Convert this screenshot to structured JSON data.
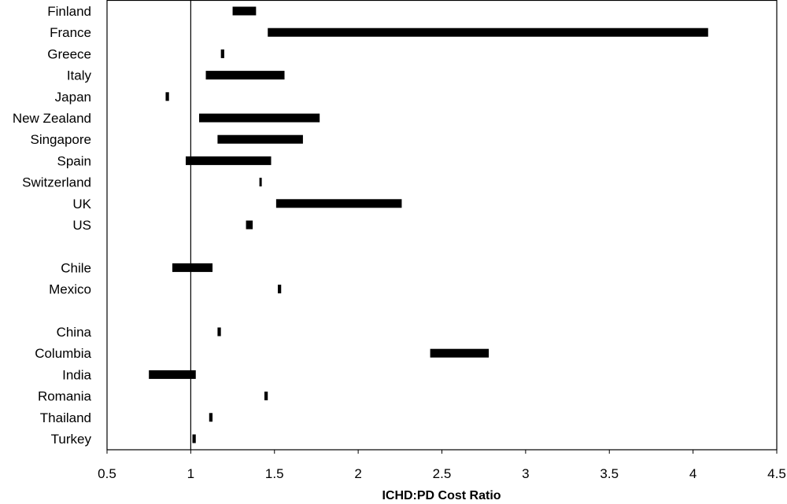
{
  "chart_data": {
    "type": "bar",
    "subtype": "floating-range",
    "xlabel": "ICHD:PD Cost Ratio",
    "ylabel": "",
    "xlim": [
      0.5,
      4.5
    ],
    "xticks": [
      "0.5",
      "1",
      "1.5",
      "2",
      "2.5",
      "3",
      "3.5",
      "4",
      "4.5"
    ],
    "reference_line_x": 1,
    "grid": false,
    "series": [
      {
        "values": [
          {
            "category": "Finland",
            "low": 1.25,
            "high": 1.39
          },
          {
            "category": "France",
            "low": 1.46,
            "high": 4.09
          },
          {
            "category": "Greece",
            "low": 1.18,
            "high": 1.2
          },
          {
            "category": "Italy",
            "low": 1.09,
            "high": 1.56
          },
          {
            "category": "Japan",
            "low": 0.85,
            "high": 0.87
          },
          {
            "category": "New Zealand",
            "low": 1.05,
            "high": 1.77
          },
          {
            "category": "Singapore",
            "low": 1.16,
            "high": 1.67
          },
          {
            "category": "Spain",
            "low": 0.97,
            "high": 1.48
          },
          {
            "category": "Switzerland",
            "low": 1.41,
            "high": 1.42
          },
          {
            "category": "UK",
            "low": 1.51,
            "high": 2.26
          },
          {
            "category": "US",
            "low": 1.33,
            "high": 1.37
          },
          {
            "category": "",
            "low": null,
            "high": null
          },
          {
            "category": "Chile",
            "low": 0.89,
            "high": 1.13
          },
          {
            "category": "Mexico",
            "low": 1.52,
            "high": 1.54
          },
          {
            "category": "",
            "low": null,
            "high": null
          },
          {
            "category": "China",
            "low": 1.16,
            "high": 1.18
          },
          {
            "category": "Columbia",
            "low": 2.43,
            "high": 2.78
          },
          {
            "category": "India",
            "low": 0.75,
            "high": 1.03
          },
          {
            "category": "Romania",
            "low": 1.44,
            "high": 1.46
          },
          {
            "category": "Thailand",
            "low": 1.11,
            "high": 1.13
          },
          {
            "category": "Turkey",
            "low": 1.01,
            "high": 1.03
          }
        ]
      }
    ]
  }
}
